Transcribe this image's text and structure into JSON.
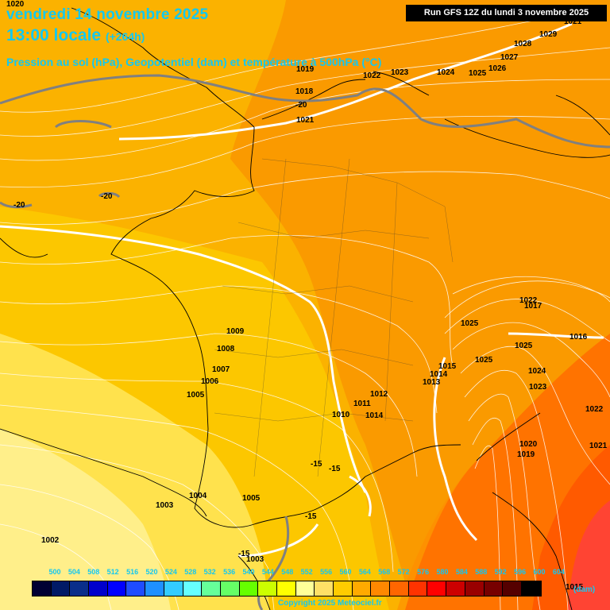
{
  "header": {
    "date_line": "vendredi 14 novembre 2025",
    "time_line": "13:00 locale",
    "lead_time": "(+264h)",
    "parameter_line": "Pression au sol (hPa), Geopotentiel (dam) et température à 500hPa (°C)",
    "run_label": "Run GFS 12Z du lundi 3 novembre 2025"
  },
  "pressure_labels": [
    "1020",
    "1019",
    "1018",
    "1021",
    "1022",
    "1023",
    "1024",
    "1025",
    "1026",
    "1027",
    "1028",
    "1029",
    "1021",
    "1022",
    "1017",
    "1025",
    "1025",
    "1016",
    "1015",
    "1014",
    "1025",
    "1024",
    "1023",
    "1022",
    "1021",
    "1020",
    "1019",
    "1013",
    "1012",
    "1011",
    "1010",
    "1014",
    "1009",
    "1008",
    "1007",
    "1006",
    "1005",
    "1004",
    "1003",
    "1002",
    "1005",
    "1003",
    "1015"
  ],
  "temperature_labels": [
    "-20",
    "-20",
    "-20",
    "-15",
    "-15",
    "-15",
    "-15"
  ],
  "legend": {
    "values": [
      "500",
      "504",
      "508",
      "512",
      "516",
      "520",
      "524",
      "528",
      "532",
      "536",
      "540",
      "544",
      "548",
      "552",
      "556",
      "560",
      "564",
      "568",
      "572",
      "576",
      "580",
      "584",
      "588",
      "592",
      "596",
      "600",
      "604"
    ],
    "colors": [
      "#000033",
      "#001a66",
      "#0a2e8a",
      "#0000cc",
      "#0000ff",
      "#1f4cff",
      "#1e90ff",
      "#33ccff",
      "#66ffff",
      "#66ff99",
      "#66ff66",
      "#66ff00",
      "#ccff00",
      "#ffff00",
      "#ffff99",
      "#ffe066",
      "#ffcc00",
      "#ffaa00",
      "#ff8800",
      "#ff6600",
      "#ff3300",
      "#ff0000",
      "#cc0000",
      "#990000",
      "#770000",
      "#550000",
      "#000000"
    ],
    "unit": "(dam)"
  },
  "copyright": "Copyright 2025 Meteociel.fr",
  "colors": {
    "title": "#13c8f0",
    "isobar": "#ffffff",
    "coast": "#000000",
    "border": "#808080"
  }
}
